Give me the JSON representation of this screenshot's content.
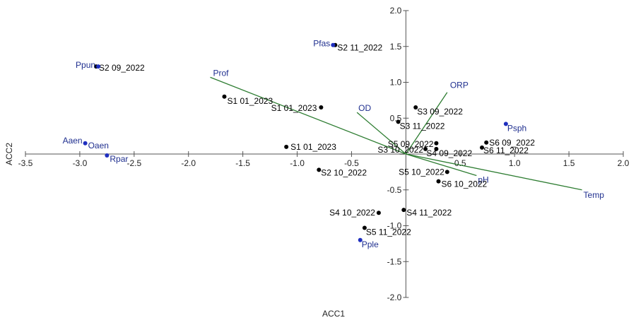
{
  "chart_data": {
    "type": "scatter",
    "xlabel": "ACC1",
    "ylabel": "ACC2",
    "xlim": [
      -3.5,
      2.0
    ],
    "ylim": [
      -2.0,
      2.0
    ],
    "x_ticks": [
      -3.5,
      -3.0,
      -2.5,
      -2.0,
      -1.5,
      -1.0,
      -0.5,
      0.5,
      1.0,
      1.5,
      2.0
    ],
    "x_tick_labels": [
      "-3.5",
      "-3.0",
      "-2.5",
      "-2.0",
      "-1.5",
      "-1.0",
      "-0.5",
      "0.5",
      "1.0",
      "1.5",
      "2.0"
    ],
    "y_ticks": [
      2.0,
      1.5,
      1.0,
      0.5,
      -0.5,
      -1.0,
      -1.5,
      -2.0
    ],
    "y_tick_labels": [
      "2.0",
      "1.5",
      "1.0",
      "0.5",
      "-0.5",
      "-1.0",
      "-1.5",
      "-2.0"
    ],
    "grid": false,
    "colors": {
      "sites": "#000000",
      "species": "#1f2fbf",
      "species_label": "#1f2f8f",
      "vectors": "#2e7d32",
      "axes": "#555555"
    },
    "sites": [
      {
        "label": "S2 09_2022",
        "x": -2.85,
        "y": 1.22
      },
      {
        "label": "S2 11_2022",
        "x": -0.65,
        "y": 1.52
      },
      {
        "label": "S1 01_2023",
        "x": -1.67,
        "y": 0.8
      },
      {
        "label": "S1 01_2023",
        "x": -0.78,
        "y": 0.65
      },
      {
        "label": "S1 01_2023",
        "x": -1.1,
        "y": 0.1
      },
      {
        "label": "S2 10_2022",
        "x": -0.8,
        "y": -0.22
      },
      {
        "label": "S3 09_2022",
        "x": 0.09,
        "y": 0.65
      },
      {
        "label": "S3 11_2022",
        "x": -0.07,
        "y": 0.45
      },
      {
        "label": "S5 09_2022",
        "x": 0.28,
        "y": 0.15
      },
      {
        "label": "S3 10_2022",
        "x": 0.18,
        "y": 0.07
      },
      {
        "label": "S4 09_2022",
        "x": 0.28,
        "y": 0.07
      },
      {
        "label": "S6 09_2022",
        "x": 0.74,
        "y": 0.16
      },
      {
        "label": "S6 11_2022",
        "x": 0.7,
        "y": 0.09
      },
      {
        "label": "S5 10_2022",
        "x": 0.38,
        "y": -0.25
      },
      {
        "label": "S6 10_2022",
        "x": 0.3,
        "y": -0.38
      },
      {
        "label": "S4 10_2022",
        "x": -0.25,
        "y": -0.82
      },
      {
        "label": "S4 11_2022",
        "x": -0.02,
        "y": -0.78
      },
      {
        "label": "S5 11_2022",
        "x": -0.38,
        "y": -1.03
      }
    ],
    "species": [
      {
        "label": "Ppun",
        "x": -2.83,
        "y": 1.22
      },
      {
        "label": "Pfas",
        "x": -0.67,
        "y": 1.52
      },
      {
        "label": "Aaen",
        "x": -2.95,
        "y": 0.15
      },
      {
        "label": "Oaen",
        "x": -2.95,
        "y": 0.15
      },
      {
        "label": "Rpar",
        "x": -2.75,
        "y": -0.02
      },
      {
        "label": "Psph",
        "x": 0.92,
        "y": 0.42
      },
      {
        "label": "Pple",
        "x": -0.42,
        "y": -1.2
      }
    ],
    "vectors": [
      {
        "label": "Prof",
        "x": -1.8,
        "y": 1.07
      },
      {
        "label": "OD",
        "x": -0.45,
        "y": 0.58
      },
      {
        "label": "ORP",
        "x": 0.38,
        "y": 0.86
      },
      {
        "label": "pH",
        "x": 0.65,
        "y": -0.3
      },
      {
        "label": "Temp",
        "x": 1.62,
        "y": -0.5
      }
    ]
  }
}
